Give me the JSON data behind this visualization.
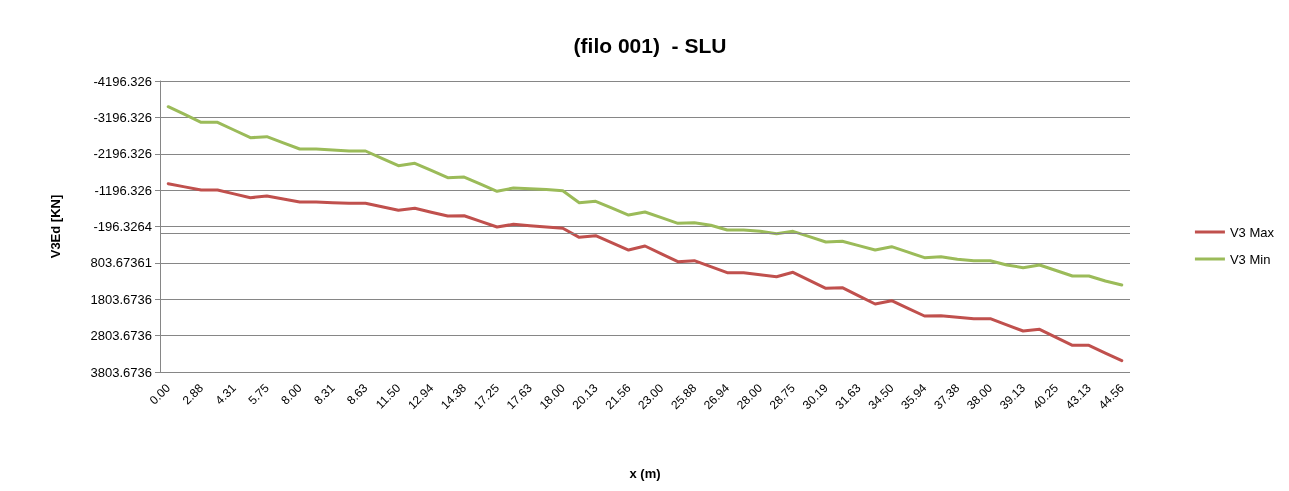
{
  "chart_data": {
    "type": "line",
    "title": "(filo 001)  - SLU",
    "xlabel": "x (m)",
    "ylabel": "V3Ed [KN]",
    "categories": [
      "0.00",
      null,
      "2.88",
      null,
      "4.31",
      null,
      "5.75",
      null,
      "8.00",
      null,
      "8.31",
      null,
      "8.63",
      null,
      "11.50",
      null,
      "12.94",
      null,
      "14.38",
      null,
      "17.25",
      null,
      "17.63",
      null,
      "18.00",
      null,
      "20.13",
      null,
      "21.56",
      null,
      "23.00",
      null,
      "25.88",
      null,
      "26.94",
      null,
      "28.00",
      null,
      "28.75",
      null,
      "30.19",
      null,
      "31.63",
      null,
      "34.50",
      null,
      "35.94",
      null,
      "37.38",
      null,
      "38.00",
      null,
      "39.13",
      null,
      "40.25",
      null,
      "43.13",
      null,
      "44.56"
    ],
    "series": [
      {
        "name": "V3 Max",
        "color": "#c0504d",
        "values": [
          -1373,
          -1286,
          -1200,
          -1200,
          -1094,
          -988,
          -1035,
          -952,
          -870,
          -870,
          -852,
          -834,
          -834,
          -738,
          -642,
          -696,
          -590,
          -485,
          -493,
          -338,
          -182,
          -257,
          -220,
          -182,
          -147,
          101,
          57,
          254,
          450,
          340,
          556,
          771,
          743,
          908,
          1074,
          1074,
          1129,
          1184,
          1063,
          1283,
          1503,
          1486,
          1710,
          1934,
          1844,
          2054,
          2264,
          2256,
          2297,
          2338,
          2338,
          2508,
          2677,
          2630,
          2850,
          3070,
          3070,
          3282,
          3493
        ]
      },
      {
        "name": "V3 Min",
        "color": "#9bbb59",
        "values": [
          -3490,
          -3276,
          -3061,
          -3061,
          -2849,
          -2637,
          -2665,
          -2496,
          -2327,
          -2327,
          -2300,
          -2272,
          -2272,
          -2070,
          -1868,
          -1934,
          -1736,
          -1538,
          -1557,
          -1360,
          -1164,
          -1255,
          -1234,
          -1213,
          -1180,
          -850,
          -889,
          -700,
          -512,
          -595,
          -440,
          -284,
          -301,
          -229,
          -100,
          -100,
          -64,
          2,
          -64,
          83,
          230,
          211,
          330,
          450,
          359,
          510,
          661,
          634,
          705,
          744,
          744,
          862,
          936,
          862,
          1013,
          1165,
          1165,
          1302,
          1412
        ]
      }
    ],
    "ylim": [
      3803.6736,
      -4196.326
    ],
    "yticks": [
      {
        "value": -4196.326,
        "label": "-4196.326"
      },
      {
        "value": -3196.326,
        "label": "-3196.326"
      },
      {
        "value": -2196.326,
        "label": "-2196.326"
      },
      {
        "value": -1196.326,
        "label": "-1196.326"
      },
      {
        "value": -196.3264,
        "label": "-196.3264"
      },
      {
        "value": 803.67361,
        "label": "803.67361"
      },
      {
        "value": 1803.6736,
        "label": "1803.6736"
      },
      {
        "value": 2803.6736,
        "label": "2803.6736"
      },
      {
        "value": 3803.6736,
        "label": "3803.6736"
      }
    ],
    "ref_lines": [
      {
        "axis": "y",
        "value": 0,
        "color": "#868686"
      }
    ],
    "grid": "y",
    "legend": "right",
    "marker": "none",
    "line_style": "solid"
  }
}
